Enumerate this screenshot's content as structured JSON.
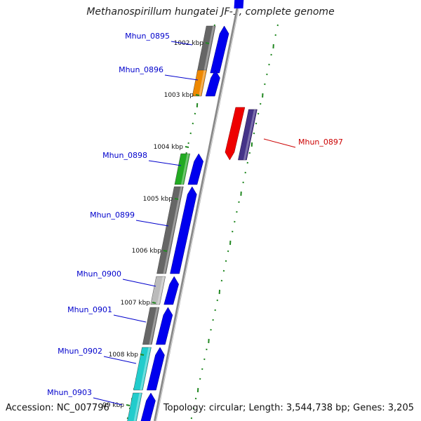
{
  "title": "Methanospirillum hungatei JF-1, complete genome",
  "accession": "Accession: NC_007796",
  "topology": "Topology: circular; Length: 3,544,738 bp; Genes: 3,205",
  "ticks": [
    {
      "label": "1002 kbp"
    },
    {
      "label": "1003 kbp"
    },
    {
      "label": "1004 kbp"
    },
    {
      "label": "1005 kbp"
    },
    {
      "label": "1006 kbp"
    },
    {
      "label": "1007 kbp"
    },
    {
      "label": "1008 kbp"
    },
    {
      "label": "09 kbp"
    }
  ],
  "genes": [
    {
      "label": "Mhun_0895",
      "strand": "+",
      "label_color": "#0000cc",
      "fill": "#666666"
    },
    {
      "label": "Mhun_0896",
      "strand": "+",
      "label_color": "#0000cc",
      "fill": "#ee8800"
    },
    {
      "label": "Mhun_0897",
      "strand": "-",
      "label_color": "#cc0000",
      "fill": "#ee0000"
    },
    {
      "label": "Mhun_0898",
      "strand": "+",
      "label_color": "#0000cc",
      "fill": "#22aa22"
    },
    {
      "label": "Mhun_0899",
      "strand": "+",
      "label_color": "#0000cc",
      "fill": "#666666"
    },
    {
      "label": "Mhun_0900",
      "strand": "+",
      "label_color": "#0000cc",
      "fill": "#bbbbbb"
    },
    {
      "label": "Mhun_0901",
      "strand": "+",
      "label_color": "#0000cc",
      "fill": "#666666"
    },
    {
      "label": "Mhun_0902",
      "strand": "+",
      "label_color": "#0000cc",
      "fill": "#22cccc"
    },
    {
      "label": "Mhun_0903",
      "strand": "+",
      "label_color": "#0000cc",
      "fill": "#22cccc"
    }
  ],
  "colors": {
    "cds_plus": "#0000ee",
    "cds_minus": "#443388",
    "backbone": "#888888",
    "tick": "#228822"
  }
}
